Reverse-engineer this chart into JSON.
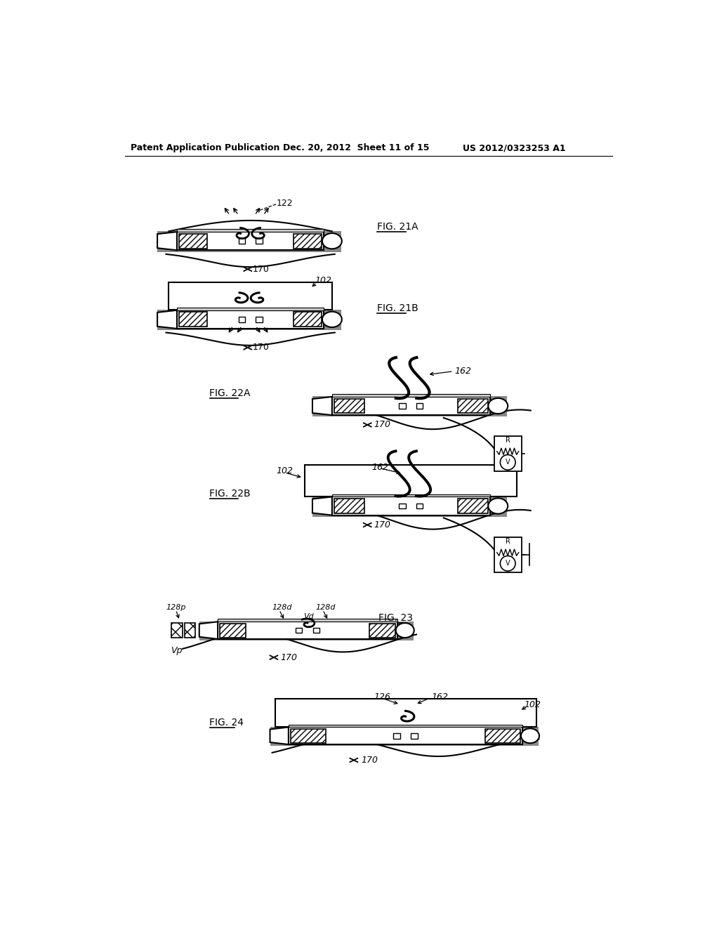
{
  "bg_color": "#ffffff",
  "text_color": "#000000",
  "header_left": "Patent Application Publication",
  "header_mid": "Dec. 20, 2012  Sheet 11 of 15",
  "header_right": "US 2012/0323253 A1",
  "fig21A_label": "FIG. 21A",
  "fig21B_label": "FIG. 21B",
  "fig22A_label": "FIG. 22A",
  "fig22B_label": "FIG. 22B",
  "fig23_label": "FIG. 23",
  "fig24_label": "FIG. 24",
  "ref_122": "122",
  "ref_170a": "170",
  "ref_170b": "170",
  "ref_170c": "170",
  "ref_170d": "170",
  "ref_170e": "170",
  "ref_102a": "102",
  "ref_102b": "102",
  "ref_102c": "102",
  "ref_162a": "162",
  "ref_162b": "162",
  "ref_162c": "162",
  "ref_128p": "128p",
  "ref_128d1": "128d",
  "ref_128d2": "128d",
  "ref_Vd": "Vd",
  "ref_Vp": "Vp",
  "ref_126": "126"
}
